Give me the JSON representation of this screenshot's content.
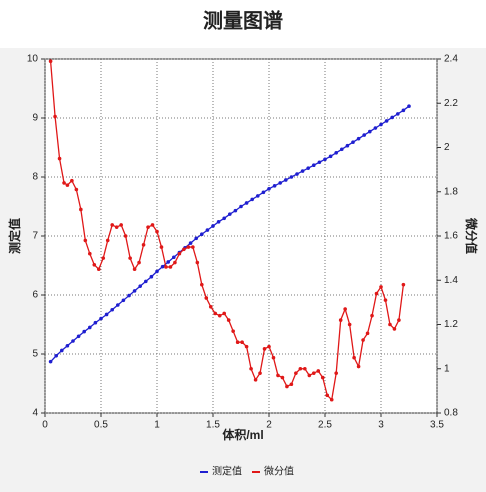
{
  "chart_data": {
    "type": "line",
    "title": "测量图谱",
    "xlabel": "体积/ml",
    "ylabel": "测定值",
    "y2label": "微分值",
    "xlim": [
      0,
      3.5
    ],
    "xticks": [
      0,
      0.5,
      1,
      1.5,
      2,
      2.5,
      3,
      3.5
    ],
    "ylim": [
      4,
      10
    ],
    "yticks": [
      4,
      5,
      6,
      7,
      8,
      9,
      10
    ],
    "y2lim": [
      0.8,
      2.4
    ],
    "y2ticks": [
      0.8,
      1,
      1.2,
      1.4,
      1.6,
      1.8,
      2,
      2.2,
      2.4
    ],
    "grid": true,
    "legend": "bottom",
    "series": [
      {
        "name": "测定值",
        "color": "#1f1fd0",
        "x": [
          0.05,
          0.1,
          0.15,
          0.2,
          0.25,
          0.3,
          0.35,
          0.4,
          0.45,
          0.5,
          0.55,
          0.6,
          0.65,
          0.7,
          0.75,
          0.8,
          0.85,
          0.9,
          0.95,
          1.0,
          1.05,
          1.1,
          1.15,
          1.2,
          1.25,
          1.3,
          1.35,
          1.4,
          1.45,
          1.5,
          1.55,
          1.6,
          1.65,
          1.7,
          1.75,
          1.8,
          1.85,
          1.9,
          1.95,
          2.0,
          2.05,
          2.1,
          2.15,
          2.2,
          2.25,
          2.3,
          2.35,
          2.4,
          2.45,
          2.5,
          2.55,
          2.6,
          2.65,
          2.7,
          2.75,
          2.8,
          2.85,
          2.9,
          2.95,
          3.0,
          3.05,
          3.1,
          3.15,
          3.2,
          3.25
        ],
        "values": [
          4.87,
          4.97,
          5.06,
          5.14,
          5.22,
          5.3,
          5.38,
          5.45,
          5.53,
          5.6,
          5.67,
          5.75,
          5.83,
          5.91,
          5.99,
          6.07,
          6.15,
          6.23,
          6.31,
          6.4,
          6.48,
          6.56,
          6.64,
          6.72,
          6.8,
          6.88,
          6.96,
          7.03,
          7.1,
          7.17,
          7.24,
          7.3,
          7.37,
          7.43,
          7.5,
          7.56,
          7.62,
          7.68,
          7.74,
          7.8,
          7.85,
          7.9,
          7.95,
          8.0,
          8.05,
          8.1,
          8.15,
          8.2,
          8.25,
          8.3,
          8.35,
          8.41,
          8.47,
          8.53,
          8.59,
          8.65,
          8.71,
          8.77,
          8.83,
          8.89,
          8.95,
          9.01,
          9.07,
          9.13,
          9.2
        ]
      },
      {
        "name": "微分值",
        "color": "#e01818",
        "axis": "y2",
        "x": [
          0.05,
          0.09,
          0.13,
          0.17,
          0.2,
          0.24,
          0.28,
          0.32,
          0.36,
          0.4,
          0.44,
          0.48,
          0.52,
          0.56,
          0.6,
          0.64,
          0.68,
          0.72,
          0.76,
          0.8,
          0.84,
          0.88,
          0.92,
          0.96,
          1.0,
          1.04,
          1.08,
          1.12,
          1.16,
          1.2,
          1.24,
          1.28,
          1.32,
          1.36,
          1.4,
          1.44,
          1.48,
          1.52,
          1.56,
          1.6,
          1.64,
          1.68,
          1.72,
          1.76,
          1.8,
          1.84,
          1.88,
          1.92,
          1.96,
          2.0,
          2.04,
          2.08,
          2.12,
          2.16,
          2.2,
          2.24,
          2.28,
          2.32,
          2.36,
          2.4,
          2.44,
          2.48,
          2.52,
          2.56,
          2.6,
          2.64,
          2.68,
          2.72,
          2.76,
          2.8,
          2.84,
          2.88,
          2.92,
          2.96,
          3.0,
          3.04,
          3.08,
          3.12,
          3.16,
          3.2
        ],
        "values": [
          2.39,
          2.14,
          1.95,
          1.84,
          1.83,
          1.85,
          1.81,
          1.72,
          1.58,
          1.52,
          1.47,
          1.45,
          1.5,
          1.58,
          1.65,
          1.64,
          1.65,
          1.6,
          1.5,
          1.45,
          1.48,
          1.56,
          1.64,
          1.65,
          1.62,
          1.55,
          1.46,
          1.46,
          1.48,
          1.52,
          1.54,
          1.55,
          1.55,
          1.48,
          1.38,
          1.32,
          1.28,
          1.25,
          1.24,
          1.25,
          1.22,
          1.17,
          1.12,
          1.12,
          1.1,
          1.0,
          0.95,
          0.98,
          1.09,
          1.1,
          1.05,
          0.97,
          0.96,
          0.92,
          0.93,
          0.98,
          1.0,
          1.0,
          0.97,
          0.98,
          0.99,
          0.96,
          0.88,
          0.86,
          0.98,
          1.22,
          1.27,
          1.2,
          1.05,
          1.01,
          1.13,
          1.16,
          1.24,
          1.34,
          1.37,
          1.31,
          1.2,
          1.18,
          1.22,
          1.38
        ]
      }
    ]
  }
}
